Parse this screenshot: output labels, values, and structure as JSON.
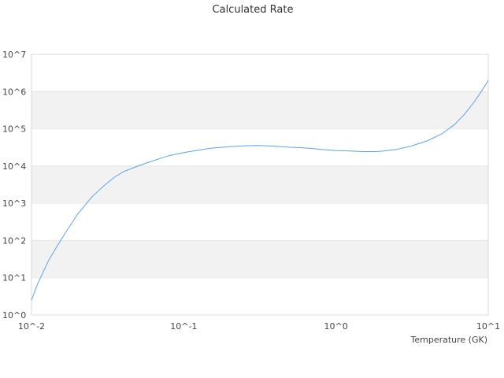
{
  "chart_data": {
    "type": "line",
    "title": "Calculated Rate",
    "xlabel": "Temperature (GK)",
    "ylabel": "",
    "x_scale": "log",
    "y_scale": "log",
    "xlim": [
      0.01,
      10
    ],
    "ylim": [
      1,
      10000000
    ],
    "x_ticks": [
      "10^-2",
      "10^-1",
      "10^0",
      "10^1"
    ],
    "x_tick_values": [
      0.01,
      0.1,
      1,
      10
    ],
    "y_ticks": [
      "10^0",
      "10^1",
      "10^2",
      "10^3",
      "10^4",
      "10^5",
      "10^6",
      "10^7"
    ],
    "y_tick_values": [
      1,
      10,
      100,
      1000,
      10000,
      100000,
      1000000,
      10000000
    ],
    "grid": "alternating horizontal bands",
    "legend": "none",
    "colors": {
      "line": "#5aa4e8",
      "band": "#f2f2f2",
      "axis": "#cccccc"
    },
    "series": [
      {
        "values": [
          [
            0.01,
            2.5
          ],
          [
            0.011,
            7
          ],
          [
            0.012,
            15
          ],
          [
            0.013,
            30
          ],
          [
            0.015,
            80
          ],
          [
            0.017,
            180
          ],
          [
            0.02,
            500
          ],
          [
            0.025,
            1500
          ],
          [
            0.03,
            3000
          ],
          [
            0.035,
            5000
          ],
          [
            0.04,
            7000
          ],
          [
            0.05,
            10000
          ],
          [
            0.06,
            13000
          ],
          [
            0.07,
            16000
          ],
          [
            0.08,
            19000
          ],
          [
            0.09,
            21000
          ],
          [
            0.1,
            23000
          ],
          [
            0.12,
            26000
          ],
          [
            0.15,
            30000
          ],
          [
            0.2,
            33000
          ],
          [
            0.25,
            35000
          ],
          [
            0.3,
            35500
          ],
          [
            0.35,
            35000
          ],
          [
            0.4,
            34000
          ],
          [
            0.5,
            32000
          ],
          [
            0.6,
            31000
          ],
          [
            0.7,
            29500
          ],
          [
            0.8,
            28000
          ],
          [
            1.0,
            26000
          ],
          [
            1.2,
            25500
          ],
          [
            1.5,
            24500
          ],
          [
            1.8,
            24500
          ],
          [
            2.0,
            25000
          ],
          [
            2.5,
            28000
          ],
          [
            3.0,
            33000
          ],
          [
            3.5,
            40000
          ],
          [
            4.0,
            48000
          ],
          [
            5.0,
            75000
          ],
          [
            6.0,
            130000
          ],
          [
            7.0,
            250000
          ],
          [
            8.0,
            500000
          ],
          [
            9.0,
            1000000
          ],
          [
            10.0,
            2000000
          ]
        ]
      }
    ]
  }
}
